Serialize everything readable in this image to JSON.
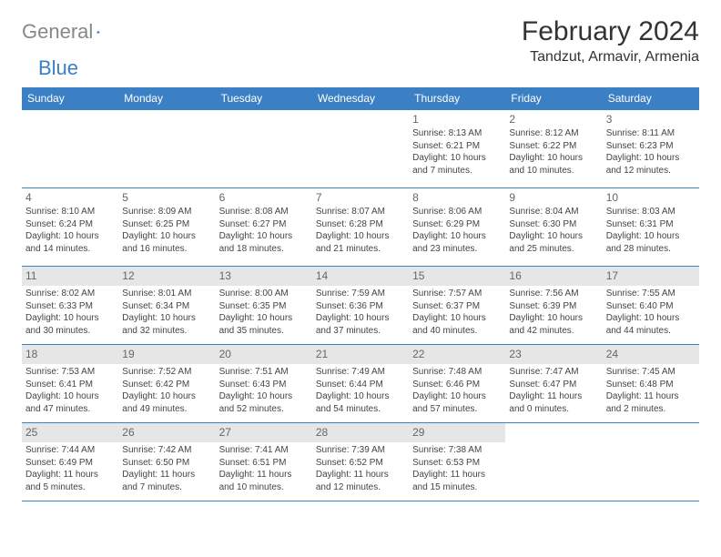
{
  "logo": {
    "gray": "General",
    "blue": "Blue"
  },
  "title": "February 2024",
  "location": "Tandzut, Armavir, Armenia",
  "colors": {
    "header_bg": "#3b7fc4",
    "header_text": "#ffffff",
    "border": "#3b7fc4",
    "shaded_bg": "#e6e6e6",
    "logo_gray": "#888888",
    "logo_blue": "#3b7fc4"
  },
  "day_names": [
    "Sunday",
    "Monday",
    "Tuesday",
    "Wednesday",
    "Thursday",
    "Friday",
    "Saturday"
  ],
  "weeks": [
    [
      null,
      null,
      null,
      null,
      {
        "n": "1",
        "sr": "Sunrise: 8:13 AM",
        "ss": "Sunset: 6:21 PM",
        "dl": "Daylight: 10 hours and 7 minutes."
      },
      {
        "n": "2",
        "sr": "Sunrise: 8:12 AM",
        "ss": "Sunset: 6:22 PM",
        "dl": "Daylight: 10 hours and 10 minutes."
      },
      {
        "n": "3",
        "sr": "Sunrise: 8:11 AM",
        "ss": "Sunset: 6:23 PM",
        "dl": "Daylight: 10 hours and 12 minutes."
      }
    ],
    [
      {
        "n": "4",
        "sr": "Sunrise: 8:10 AM",
        "ss": "Sunset: 6:24 PM",
        "dl": "Daylight: 10 hours and 14 minutes."
      },
      {
        "n": "5",
        "sr": "Sunrise: 8:09 AM",
        "ss": "Sunset: 6:25 PM",
        "dl": "Daylight: 10 hours and 16 minutes."
      },
      {
        "n": "6",
        "sr": "Sunrise: 8:08 AM",
        "ss": "Sunset: 6:27 PM",
        "dl": "Daylight: 10 hours and 18 minutes."
      },
      {
        "n": "7",
        "sr": "Sunrise: 8:07 AM",
        "ss": "Sunset: 6:28 PM",
        "dl": "Daylight: 10 hours and 21 minutes."
      },
      {
        "n": "8",
        "sr": "Sunrise: 8:06 AM",
        "ss": "Sunset: 6:29 PM",
        "dl": "Daylight: 10 hours and 23 minutes."
      },
      {
        "n": "9",
        "sr": "Sunrise: 8:04 AM",
        "ss": "Sunset: 6:30 PM",
        "dl": "Daylight: 10 hours and 25 minutes."
      },
      {
        "n": "10",
        "sr": "Sunrise: 8:03 AM",
        "ss": "Sunset: 6:31 PM",
        "dl": "Daylight: 10 hours and 28 minutes."
      }
    ],
    [
      {
        "n": "11",
        "sr": "Sunrise: 8:02 AM",
        "ss": "Sunset: 6:33 PM",
        "dl": "Daylight: 10 hours and 30 minutes.",
        "s": true
      },
      {
        "n": "12",
        "sr": "Sunrise: 8:01 AM",
        "ss": "Sunset: 6:34 PM",
        "dl": "Daylight: 10 hours and 32 minutes.",
        "s": true
      },
      {
        "n": "13",
        "sr": "Sunrise: 8:00 AM",
        "ss": "Sunset: 6:35 PM",
        "dl": "Daylight: 10 hours and 35 minutes.",
        "s": true
      },
      {
        "n": "14",
        "sr": "Sunrise: 7:59 AM",
        "ss": "Sunset: 6:36 PM",
        "dl": "Daylight: 10 hours and 37 minutes.",
        "s": true
      },
      {
        "n": "15",
        "sr": "Sunrise: 7:57 AM",
        "ss": "Sunset: 6:37 PM",
        "dl": "Daylight: 10 hours and 40 minutes.",
        "s": true
      },
      {
        "n": "16",
        "sr": "Sunrise: 7:56 AM",
        "ss": "Sunset: 6:39 PM",
        "dl": "Daylight: 10 hours and 42 minutes.",
        "s": true
      },
      {
        "n": "17",
        "sr": "Sunrise: 7:55 AM",
        "ss": "Sunset: 6:40 PM",
        "dl": "Daylight: 10 hours and 44 minutes.",
        "s": true
      }
    ],
    [
      {
        "n": "18",
        "sr": "Sunrise: 7:53 AM",
        "ss": "Sunset: 6:41 PM",
        "dl": "Daylight: 10 hours and 47 minutes.",
        "s": true
      },
      {
        "n": "19",
        "sr": "Sunrise: 7:52 AM",
        "ss": "Sunset: 6:42 PM",
        "dl": "Daylight: 10 hours and 49 minutes.",
        "s": true
      },
      {
        "n": "20",
        "sr": "Sunrise: 7:51 AM",
        "ss": "Sunset: 6:43 PM",
        "dl": "Daylight: 10 hours and 52 minutes.",
        "s": true
      },
      {
        "n": "21",
        "sr": "Sunrise: 7:49 AM",
        "ss": "Sunset: 6:44 PM",
        "dl": "Daylight: 10 hours and 54 minutes.",
        "s": true
      },
      {
        "n": "22",
        "sr": "Sunrise: 7:48 AM",
        "ss": "Sunset: 6:46 PM",
        "dl": "Daylight: 10 hours and 57 minutes.",
        "s": true
      },
      {
        "n": "23",
        "sr": "Sunrise: 7:47 AM",
        "ss": "Sunset: 6:47 PM",
        "dl": "Daylight: 11 hours and 0 minutes.",
        "s": true
      },
      {
        "n": "24",
        "sr": "Sunrise: 7:45 AM",
        "ss": "Sunset: 6:48 PM",
        "dl": "Daylight: 11 hours and 2 minutes.",
        "s": true
      }
    ],
    [
      {
        "n": "25",
        "sr": "Sunrise: 7:44 AM",
        "ss": "Sunset: 6:49 PM",
        "dl": "Daylight: 11 hours and 5 minutes.",
        "s": true
      },
      {
        "n": "26",
        "sr": "Sunrise: 7:42 AM",
        "ss": "Sunset: 6:50 PM",
        "dl": "Daylight: 11 hours and 7 minutes.",
        "s": true
      },
      {
        "n": "27",
        "sr": "Sunrise: 7:41 AM",
        "ss": "Sunset: 6:51 PM",
        "dl": "Daylight: 11 hours and 10 minutes.",
        "s": true
      },
      {
        "n": "28",
        "sr": "Sunrise: 7:39 AM",
        "ss": "Sunset: 6:52 PM",
        "dl": "Daylight: 11 hours and 12 minutes.",
        "s": true
      },
      {
        "n": "29",
        "sr": "Sunrise: 7:38 AM",
        "ss": "Sunset: 6:53 PM",
        "dl": "Daylight: 11 hours and 15 minutes.",
        "s": true
      },
      null,
      null
    ]
  ]
}
